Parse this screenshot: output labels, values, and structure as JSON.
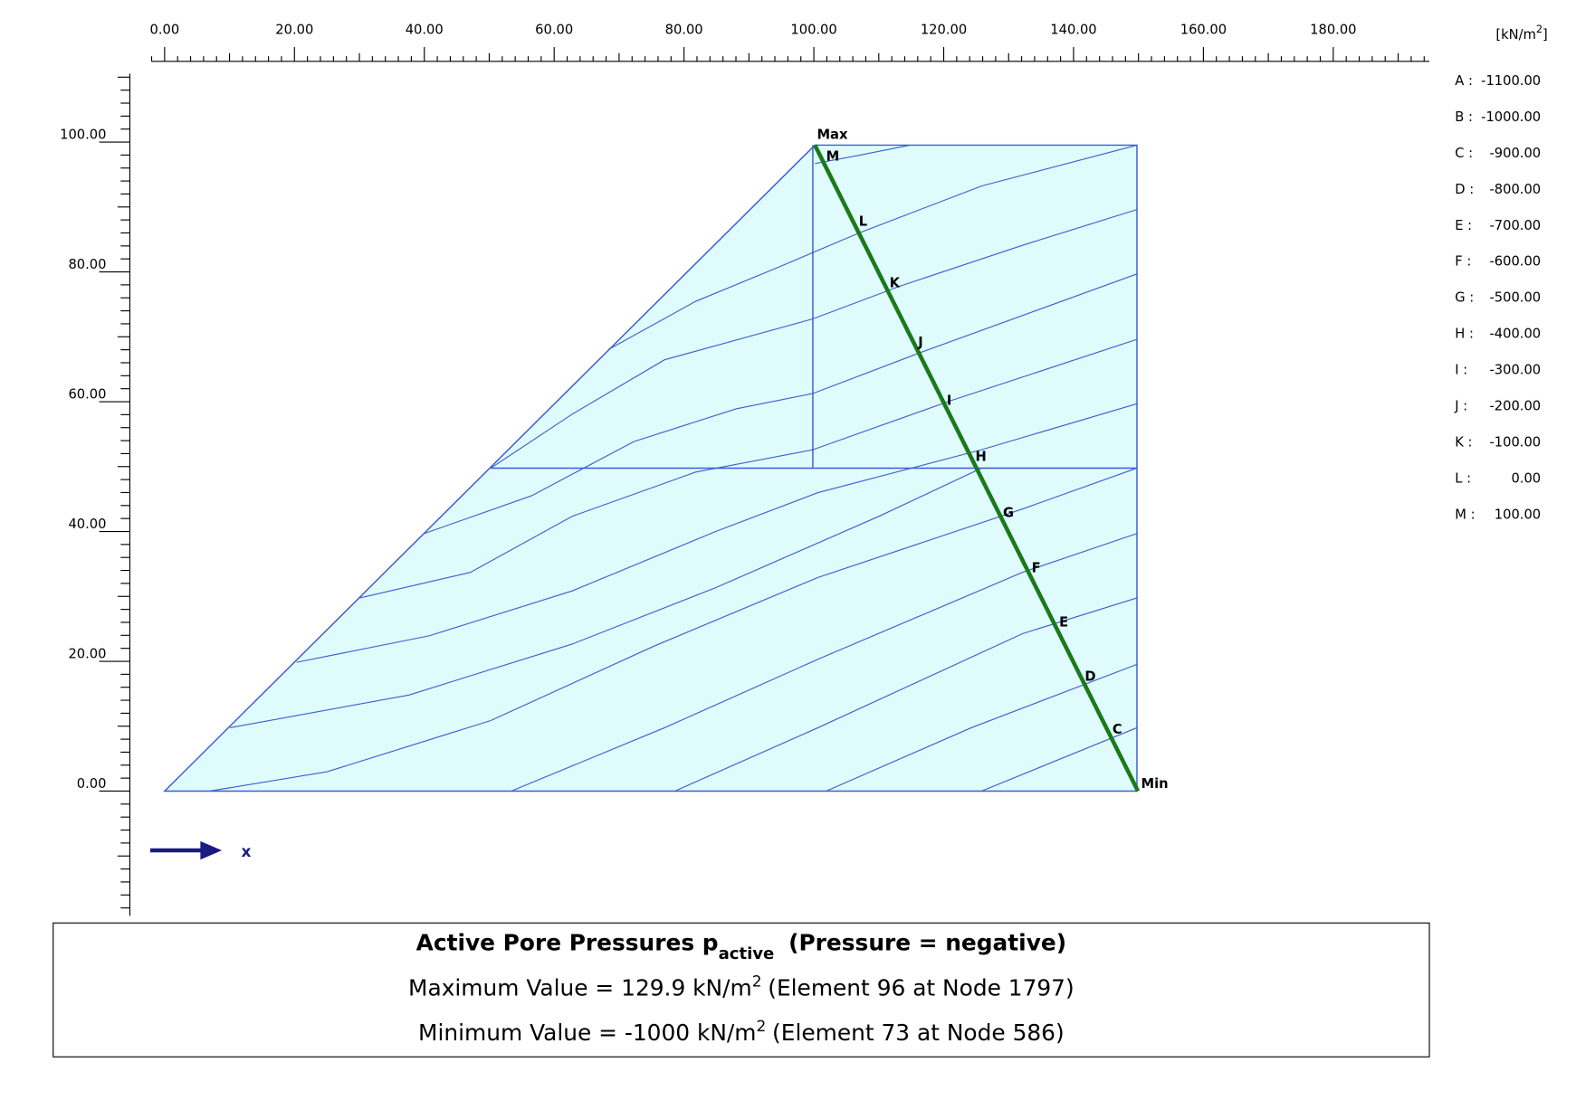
{
  "axis": {
    "x_labels": [
      "0.00",
      "20.00",
      "40.00",
      "60.00",
      "80.00",
      "100.00",
      "120.00",
      "140.00",
      "160.00",
      "180.00"
    ],
    "y_labels": [
      "100.00",
      "80.00",
      "60.00",
      "40.00",
      "20.00",
      "0.00"
    ],
    "x_arrow_label": "x"
  },
  "unit": {
    "base": "[kN/m",
    "exponent": "2",
    "close": "]"
  },
  "legend": [
    {
      "key": "A :",
      "value": "-1100.00"
    },
    {
      "key": "B :",
      "value": "-1000.00"
    },
    {
      "key": "C :",
      "value": "-900.00"
    },
    {
      "key": "D :",
      "value": "-800.00"
    },
    {
      "key": "E :",
      "value": "-700.00"
    },
    {
      "key": "F :",
      "value": "-600.00"
    },
    {
      "key": "G :",
      "value": "-500.00"
    },
    {
      "key": "H :",
      "value": "-400.00"
    },
    {
      "key": "I :",
      "value": "-300.00"
    },
    {
      "key": "J :",
      "value": "-200.00"
    },
    {
      "key": "K :",
      "value": "-100.00"
    },
    {
      "key": "L :",
      "value": "0.00"
    },
    {
      "key": "M :",
      "value": "100.00"
    }
  ],
  "plot": {
    "max_label": "Max",
    "min_label": "Min",
    "contour_labels": [
      "M",
      "L",
      "K",
      "J",
      "I",
      "H",
      "G",
      "F",
      "E",
      "D",
      "C"
    ]
  },
  "caption": {
    "title": "Active Pore Pressures p",
    "title_sub": "active",
    "title_rest": "(Pressure = negative)",
    "max_text": "Maximum Value = 129.9 kN/m",
    "max_exp": "2",
    "max_rest": "(Element 96 at Node 1797)",
    "min_text": "Minimum Value = -1000 kN/m",
    "min_exp": "2",
    "min_rest": "(Element 73 at Node 586)"
  }
}
